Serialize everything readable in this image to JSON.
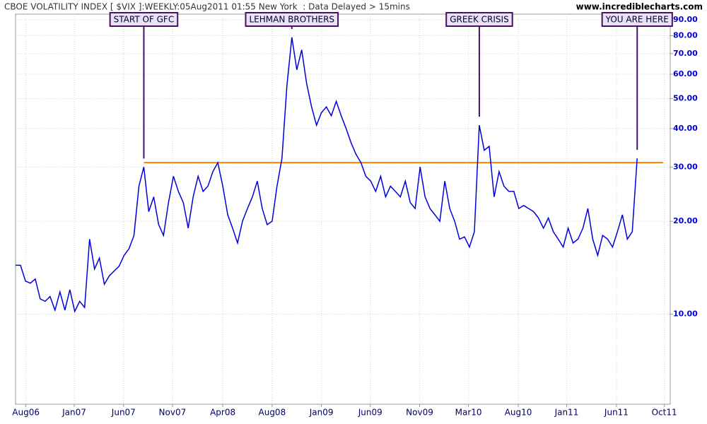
{
  "chart_data": {
    "type": "line",
    "title": "CBOE VOLATILITY INDEX [ $VIX ]:WEEKLY:05Aug2011 01:55 New York  : Data Delayed > 15mins",
    "source": "www.incrediblecharts.com",
    "color": "#0000dd",
    "log_scale": true,
    "grid": true,
    "values": [
      14.4,
      14.4,
      12.8,
      12.6,
      13.0,
      11.2,
      11.0,
      11.4,
      10.3,
      11.8,
      10.3,
      12.0,
      10.2,
      11.0,
      10.5,
      17.5,
      14.0,
      15.2,
      12.5,
      13.3,
      13.8,
      14.3,
      15.5,
      16.3,
      18.0,
      26,
      30,
      21.5,
      24,
      19.5,
      18.0,
      23,
      28,
      25,
      23,
      19,
      24,
      28,
      25,
      26,
      29,
      31,
      26,
      21,
      19,
      17,
      20,
      22,
      24,
      27,
      22,
      19.5,
      20,
      26,
      32,
      55,
      79,
      62,
      72,
      56,
      47,
      41,
      45,
      47,
      44,
      49,
      44,
      40,
      36,
      33,
      31,
      28,
      27,
      25,
      28,
      24,
      26,
      25,
      24,
      27,
      23,
      22,
      30,
      24,
      22,
      21,
      20,
      27,
      22,
      20,
      17.5,
      17.8,
      16.5,
      18.5,
      41,
      34,
      35,
      24,
      29,
      26,
      25,
      25,
      22,
      22.5,
      22,
      21.5,
      20.5,
      19,
      20.5,
      18.5,
      17.5,
      16.5,
      19,
      17.0,
      17.5,
      19,
      22,
      17.5,
      15.5,
      18,
      17.5,
      16.5,
      18.5,
      21,
      17.5,
      18.5,
      32
    ],
    "xlim": [
      0,
      132.7
    ],
    "xticks": [
      {
        "value": 2.1,
        "label": "Aug06"
      },
      {
        "value": 11.9,
        "label": "Jan07"
      },
      {
        "value": 21.9,
        "label": "Jun07"
      },
      {
        "value": 31.8,
        "label": "Nov07"
      },
      {
        "value": 42,
        "label": "Apr08"
      },
      {
        "value": 52,
        "label": "Aug08"
      },
      {
        "value": 62,
        "label": "Jan09"
      },
      {
        "value": 71.9,
        "label": "Jun09"
      },
      {
        "value": 81.9,
        "label": "Nov09"
      },
      {
        "value": 91.8,
        "label": "Mar10"
      },
      {
        "value": 101.9,
        "label": "Aug10"
      },
      {
        "value": 111.7,
        "label": "Jan11"
      },
      {
        "value": 121.8,
        "label": "Jun11"
      },
      {
        "value": 131.5,
        "label": "Oct11"
      }
    ],
    "ylim": [
      5.1,
      94
    ],
    "yticks": [
      {
        "value": 10,
        "label": "10.00"
      },
      {
        "value": 20,
        "label": "20.00"
      },
      {
        "value": 30,
        "label": "30.00"
      },
      {
        "value": 40,
        "label": "40.00"
      },
      {
        "value": 50,
        "label": "50.00"
      },
      {
        "value": 60,
        "label": "60.00"
      },
      {
        "value": 70,
        "label": "70.00"
      },
      {
        "value": 80,
        "label": "80.00"
      },
      {
        "value": 90,
        "label": "90.00"
      }
    ],
    "reference_line": {
      "value": 31,
      "color": "#ff8000"
    },
    "annotations": [
      {
        "text": "START OF GFC",
        "x": 26
      },
      {
        "text": "LEHMAN BROTHERS",
        "x": 56
      },
      {
        "text": "GREEK CRISIS",
        "x": 94
      },
      {
        "text": "YOU ARE HERE",
        "x": 126
      }
    ]
  }
}
